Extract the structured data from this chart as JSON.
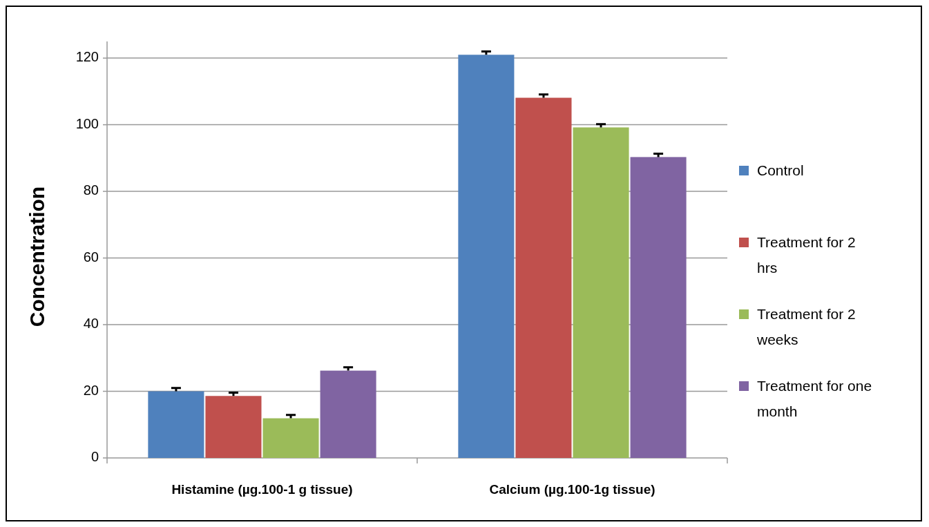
{
  "chart_data": {
    "type": "bar",
    "ylabel": "Concentration",
    "categories": [
      "Histamine (µg.100-1 g tissue)",
      "Calcium (µg.100-1g  tissue)"
    ],
    "series": [
      {
        "name": "Control",
        "color": "#4f81bd",
        "values": [
          20,
          121
        ],
        "errors": [
          1,
          1
        ]
      },
      {
        "name": "Treatment for 2 hrs",
        "color": "#c0504d",
        "values": [
          18.6,
          108.1
        ],
        "errors": [
          1,
          1
        ]
      },
      {
        "name": "Treatment for 2 weeks",
        "color": "#9bbb59",
        "values": [
          11.9,
          99.2
        ],
        "errors": [
          1,
          1
        ]
      },
      {
        "name": "Treatment for one month",
        "color": "#8064a2",
        "values": [
          26.2,
          90.3
        ],
        "errors": [
          1,
          1
        ]
      }
    ],
    "ylim": [
      0,
      125
    ],
    "yticks": [
      0,
      20,
      40,
      60,
      80,
      100,
      120
    ],
    "grid": "y",
    "legend": "right"
  }
}
